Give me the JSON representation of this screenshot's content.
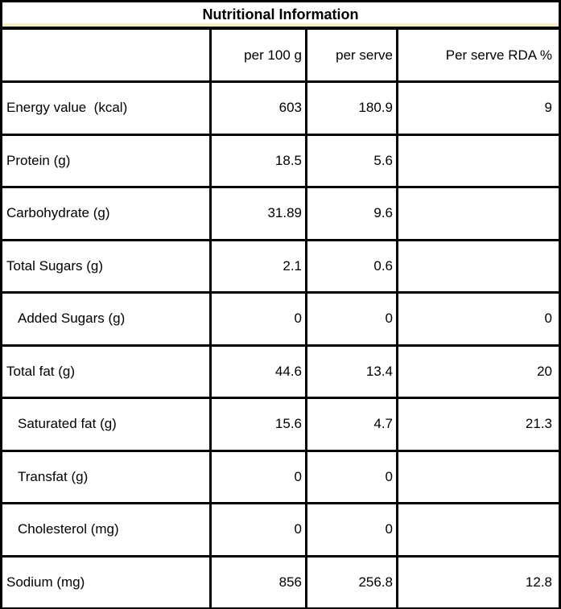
{
  "table": {
    "title": "Nutritional Information",
    "columns": [
      "",
      "per 100 g",
      "per serve",
      "Per serve RDA %"
    ],
    "rows": [
      {
        "label": "Energy value  (kcal)",
        "indent": false,
        "per_100g": "603",
        "per_serve": "180.9",
        "rda": "9"
      },
      {
        "label": "Protein (g)",
        "indent": false,
        "per_100g": "18.5",
        "per_serve": "5.6",
        "rda": ""
      },
      {
        "label": "Carbohydrate (g)",
        "indent": false,
        "per_100g": "31.89",
        "per_serve": "9.6",
        "rda": ""
      },
      {
        "label": "Total Sugars (g)",
        "indent": false,
        "per_100g": "2.1",
        "per_serve": "0.6",
        "rda": ""
      },
      {
        "label": "Added Sugars (g)",
        "indent": true,
        "per_100g": "0",
        "per_serve": "0",
        "rda": "0"
      },
      {
        "label": "Total fat (g)",
        "indent": false,
        "per_100g": "44.6",
        "per_serve": "13.4",
        "rda": "20"
      },
      {
        "label": "Saturated fat (g)",
        "indent": true,
        "per_100g": "15.6",
        "per_serve": "4.7",
        "rda": "21.3"
      },
      {
        "label": "Transfat (g)",
        "indent": true,
        "per_100g": "0",
        "per_serve": "0",
        "rda": ""
      },
      {
        "label": "Cholesterol (mg)",
        "indent": true,
        "per_100g": "0",
        "per_serve": "0",
        "rda": ""
      },
      {
        "label": "Sodium (mg)",
        "indent": false,
        "per_100g": "856",
        "per_serve": "256.8",
        "rda": "12.8"
      }
    ],
    "colors": {
      "border": "#000000",
      "title_accent": "#f5ecc5",
      "background": "#ffffff",
      "text": "#000000"
    }
  }
}
